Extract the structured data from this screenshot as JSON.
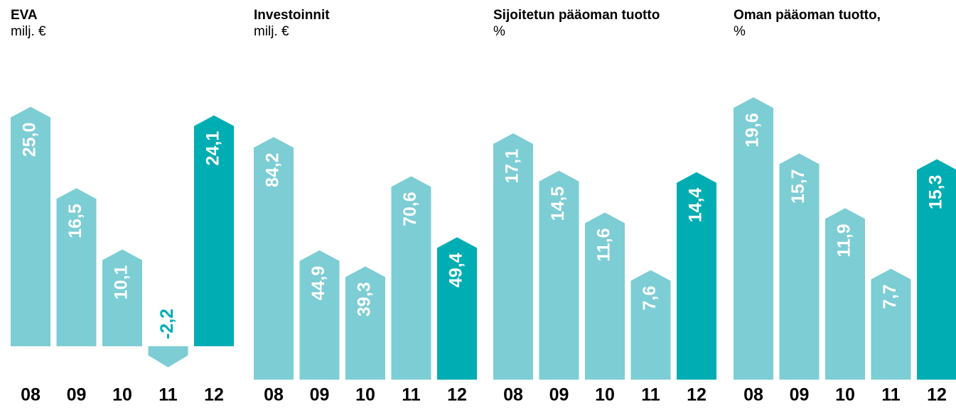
{
  "chart_data": [
    {
      "type": "bar",
      "title": "EVA",
      "subtitle": "milj. €",
      "categories": [
        "08",
        "09",
        "10",
        "11",
        "12"
      ],
      "values": [
        25.0,
        16.5,
        10.1,
        -2.2,
        24.1
      ],
      "value_labels": [
        "25,0",
        "16,5",
        "10,1",
        "-2,2",
        "24,1"
      ],
      "colors": [
        "#7dcdd4",
        "#7dcdd4",
        "#7dcdd4",
        "#7dcdd4",
        "#00adb3"
      ]
    },
    {
      "type": "bar",
      "title": "Investoinnit",
      "subtitle": "milj. €",
      "categories": [
        "08",
        "09",
        "10",
        "11",
        "12"
      ],
      "values": [
        84.2,
        44.9,
        39.3,
        70.6,
        49.4
      ],
      "value_labels": [
        "84,2",
        "44,9",
        "39,3",
        "70,6",
        "49,4"
      ],
      "colors": [
        "#7dcdd4",
        "#7dcdd4",
        "#7dcdd4",
        "#7dcdd4",
        "#00adb3"
      ]
    },
    {
      "type": "bar",
      "title": "Sijoitetun pääoman tuotto",
      "subtitle": "%",
      "categories": [
        "08",
        "09",
        "10",
        "11",
        "12"
      ],
      "values": [
        17.1,
        14.5,
        11.6,
        7.6,
        14.4
      ],
      "value_labels": [
        "17,1",
        "14,5",
        "11,6",
        "7,6",
        "14,4"
      ],
      "colors": [
        "#7dcdd4",
        "#7dcdd4",
        "#7dcdd4",
        "#7dcdd4",
        "#00adb3"
      ]
    },
    {
      "type": "bar",
      "title": "Oman pääoman tuotto,",
      "subtitle": "%",
      "categories": [
        "08",
        "09",
        "10",
        "11",
        "12"
      ],
      "values": [
        19.6,
        15.7,
        11.9,
        7.7,
        15.3
      ],
      "value_labels": [
        "19,6",
        "15,7",
        "11,9",
        "7,7",
        "15,3"
      ],
      "colors": [
        "#7dcdd4",
        "#7dcdd4",
        "#7dcdd4",
        "#7dcdd4",
        "#00adb3"
      ]
    }
  ]
}
